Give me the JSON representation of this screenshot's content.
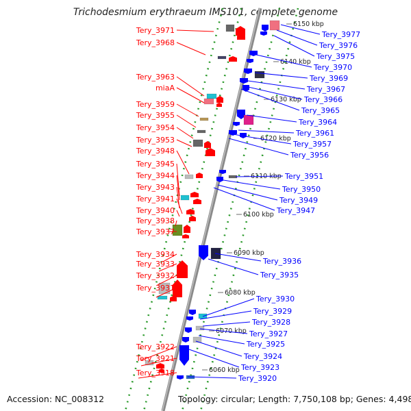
{
  "title": "Trichodesmium erythraeum IMS101, complete genome",
  "accession": "Accession: NC_008312",
  "topology": "Topology: circular; Length: 7,750,108 bp; Genes: 4,498",
  "colors": {
    "forward": "#ff0000",
    "reverse": "#0000ff",
    "backbone": "#8a8a8a",
    "ticks": "#2a9a2a"
  },
  "ticks": [
    "6150 kbp",
    "6140 kbp",
    "6130 kbp",
    "6120 kbp",
    "6110 kbp",
    "6100 kbp",
    "6090 kbp",
    "6080 kbp",
    "6070 kbp",
    "6060 kbp"
  ],
  "left_labels": [
    "Tery_3971",
    "Tery_3968",
    "Tery_3963",
    "miaA",
    "Tery_3959",
    "Tery_3955",
    "Tery_3954",
    "Tery_3953",
    "Tery_3948",
    "Tery_3945",
    "Tery_3944",
    "Tery_3943",
    "Tery_3941",
    "Tery_3940",
    "Tery_3938",
    "Tery_3937",
    "Tery_3934",
    "Tery_3933",
    "Tery_3932",
    "Tery_3931",
    "Tery_3922",
    "Tery_3921",
    "Tery_3918"
  ],
  "right_labels": [
    "Tery_3977",
    "Tery_3976",
    "Tery_3975",
    "Tery_3970",
    "Tery_3969",
    "Tery_3967",
    "Tery_3966",
    "Tery_3965",
    "Tery_3964",
    "Tery_3961",
    "Tery_3957",
    "Tery_3956",
    "Tery_3951",
    "Tery_3950",
    "Tery_3949",
    "Tery_3947",
    "Tery_3936",
    "Tery_3935",
    "Tery_3930",
    "Tery_3929",
    "Tery_3928",
    "Tery_3927",
    "Tery_3925",
    "Tery_3924",
    "Tery_3923",
    "Tery_3920"
  ]
}
